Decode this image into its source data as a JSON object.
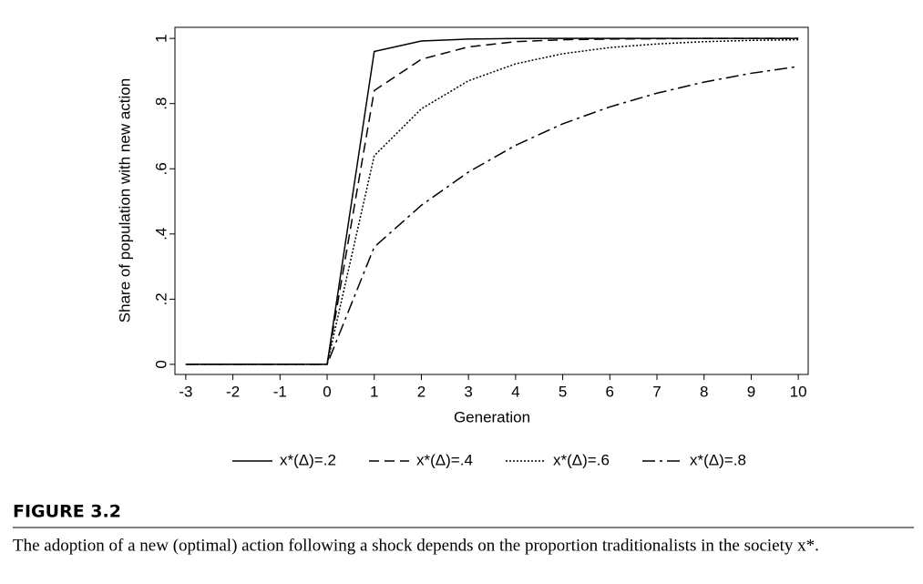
{
  "chart_data": {
    "type": "line",
    "x": [
      -3,
      -2,
      -1,
      0,
      1,
      2,
      3,
      4,
      5,
      6,
      7,
      8,
      9,
      10
    ],
    "xlim": [
      -3.23,
      10.21
    ],
    "xticks": [
      -3,
      -2,
      -1,
      0,
      1,
      2,
      3,
      4,
      5,
      6,
      7,
      8,
      9,
      10
    ],
    "ylim": [
      -0.031,
      1.034
    ],
    "yticks": [
      0,
      {
        "value": 0.2,
        "label": ".2"
      },
      {
        "value": 0.4,
        "label": ".4"
      },
      {
        "value": 0.6,
        "label": ".6"
      },
      {
        "value": 0.8,
        "label": ".8"
      },
      1
    ],
    "xlabel": "Generation",
    "ylabel": "Share of population with new  action",
    "legend": "bottom",
    "series": [
      {
        "name": "x*(Δ)=.2",
        "color": "#000000",
        "dash": "solid",
        "values": [
          0,
          0,
          0,
          0,
          0.96,
          0.992,
          0.998,
          0.9997,
          1,
          1,
          1,
          1,
          1,
          1
        ]
      },
      {
        "name": "x*(Δ)=.4",
        "color": "#000000",
        "dash": "dashed",
        "values": [
          0,
          0,
          0,
          0,
          0.84,
          0.936,
          0.974,
          0.99,
          0.996,
          0.998,
          0.999,
          1,
          1,
          1
        ]
      },
      {
        "name": "x*(Δ)=.6",
        "color": "#000000",
        "dash": "dotted",
        "values": [
          0,
          0,
          0,
          0,
          0.64,
          0.784,
          0.87,
          0.922,
          0.953,
          0.972,
          0.983,
          0.99,
          0.994,
          0.996
        ]
      },
      {
        "name": "x*(Δ)=.8",
        "color": "#000000",
        "dash": "dashdot",
        "values": [
          0,
          0,
          0,
          0,
          0.36,
          0.488,
          0.59,
          0.672,
          0.738,
          0.79,
          0.832,
          0.866,
          0.893,
          0.914
        ]
      }
    ],
    "figure_label": "FIGURE 3.2",
    "caption": "The adoption of a new (optimal) action following a shock depends on the proportion traditionalists in the society x*."
  }
}
